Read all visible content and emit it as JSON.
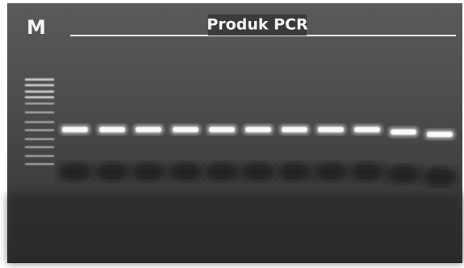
{
  "labels": {
    "marker": "M",
    "title": "Produk PCR"
  }
}
